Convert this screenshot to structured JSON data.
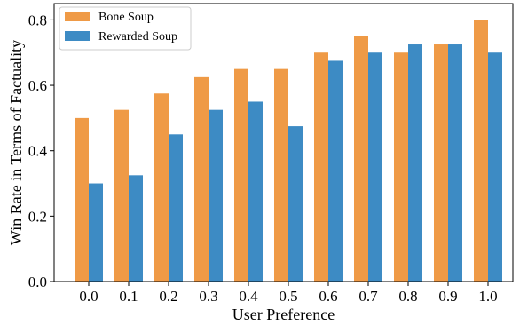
{
  "chart_data": {
    "type": "bar",
    "title": "",
    "xlabel": "User Preference",
    "ylabel": "Win Rate in Terms of Factuality",
    "categories": [
      "0.0",
      "0.1",
      "0.2",
      "0.3",
      "0.4",
      "0.5",
      "0.6",
      "0.7",
      "0.8",
      "0.9",
      "1.0"
    ],
    "series": [
      {
        "name": "Bone Soup",
        "color": "#ef9a46",
        "values": [
          0.5,
          0.525,
          0.575,
          0.625,
          0.65,
          0.65,
          0.7,
          0.75,
          0.7,
          0.725,
          0.8
        ]
      },
      {
        "name": "Rewarded Soup",
        "color": "#3d8bc4",
        "values": [
          0.3,
          0.325,
          0.45,
          0.525,
          0.55,
          0.475,
          0.675,
          0.7,
          0.725,
          0.725,
          0.7
        ]
      }
    ],
    "ylim": [
      0,
      0.85
    ],
    "yticks": [
      "0.0",
      "0.2",
      "0.4",
      "0.6",
      "0.8"
    ],
    "grid": false,
    "legend_position": "top-left"
  }
}
